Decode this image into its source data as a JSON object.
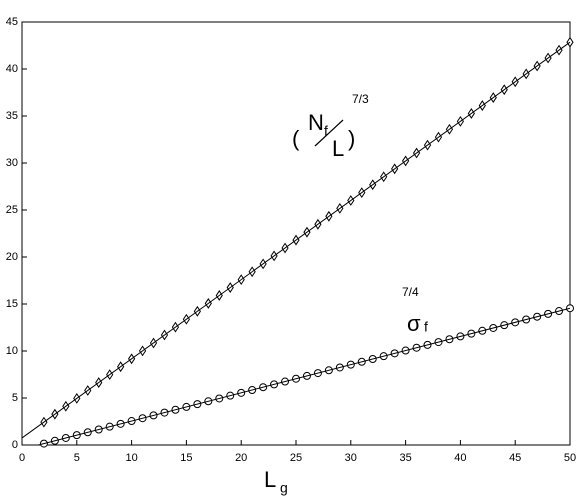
{
  "chart_data": {
    "type": "scatter",
    "xlabel": "L",
    "xlabel_sub": "g",
    "annotations": [
      "(",
      "N",
      "f",
      "L",
      ")",
      "7/3",
      "σ",
      "f",
      "7/4"
    ],
    "xlim": [
      0,
      50
    ],
    "ylim": [
      0,
      45
    ],
    "xticks": [
      0,
      5,
      10,
      15,
      20,
      25,
      30,
      35,
      40,
      45,
      50
    ],
    "yticks": [
      0,
      5,
      10,
      15,
      20,
      25,
      30,
      35,
      40,
      45
    ],
    "color": "#000000",
    "series": [
      {
        "marker": "diamond",
        "x": [
          2,
          3,
          4,
          5,
          6,
          7,
          8,
          9,
          10,
          11,
          12,
          13,
          14,
          15,
          16,
          17,
          18,
          19,
          20,
          21,
          22,
          23,
          24,
          25,
          26,
          27,
          28,
          29,
          30,
          31,
          32,
          33,
          34,
          35,
          36,
          37,
          38,
          39,
          40,
          41,
          42,
          43,
          44,
          45,
          46,
          47,
          48,
          49,
          50
        ],
        "values": [
          2.43,
          3.28,
          4.12,
          4.96,
          5.8,
          6.64,
          7.49,
          8.33,
          9.17,
          10.01,
          10.85,
          11.7,
          12.54,
          13.38,
          14.22,
          15.06,
          15.91,
          16.75,
          17.59,
          18.43,
          19.27,
          20.12,
          20.96,
          21.8,
          22.64,
          23.48,
          24.33,
          25.17,
          26.01,
          26.85,
          27.69,
          28.54,
          29.38,
          30.22,
          31.06,
          31.9,
          32.75,
          33.59,
          34.43,
          35.27,
          36.11,
          36.96,
          37.8,
          38.64,
          39.48,
          40.32,
          41.17,
          42.01,
          42.85
        ]
      },
      {
        "marker": "circle",
        "x": [
          2,
          3,
          4,
          5,
          6,
          7,
          8,
          9,
          10,
          11,
          12,
          13,
          14,
          15,
          16,
          17,
          18,
          19,
          20,
          21,
          22,
          23,
          24,
          25,
          26,
          27,
          28,
          29,
          30,
          31,
          32,
          33,
          34,
          35,
          36,
          37,
          38,
          39,
          40,
          41,
          42,
          43,
          44,
          45,
          46,
          47,
          48,
          49,
          50
        ],
        "values": [
          0.15,
          0.45,
          0.75,
          1.05,
          1.35,
          1.65,
          1.95,
          2.25,
          2.55,
          2.85,
          3.15,
          3.45,
          3.75,
          4.05,
          4.35,
          4.65,
          4.95,
          5.25,
          5.55,
          5.85,
          6.15,
          6.45,
          6.75,
          7.05,
          7.35,
          7.65,
          7.95,
          8.25,
          8.55,
          8.85,
          9.15,
          9.45,
          9.75,
          10.05,
          10.35,
          10.65,
          10.95,
          11.25,
          11.55,
          11.85,
          12.15,
          12.45,
          12.75,
          13.05,
          13.35,
          13.65,
          13.95,
          14.25,
          14.55
        ]
      },
      {
        "marker": "none",
        "x": [
          0,
          50
        ],
        "values": [
          0.75,
          42.85
        ]
      },
      {
        "marker": "none",
        "x": [
          1.5,
          50
        ],
        "values": [
          0,
          14.55
        ]
      }
    ]
  }
}
